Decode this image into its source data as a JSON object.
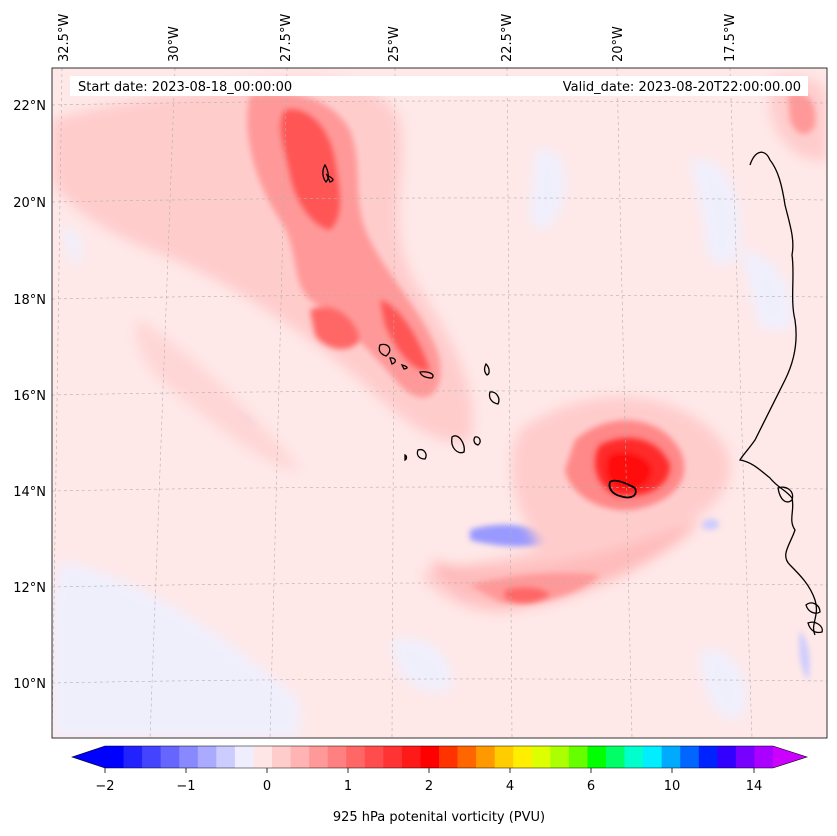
{
  "header": {
    "start_label": "Start date: 2023-08-18_00:00:00",
    "valid_label": "Valid_date: 2023-08-20T22:00:00.00"
  },
  "axes": {
    "lon_labels": [
      "32.5°W",
      "30°W",
      "27.5°W",
      "25°W",
      "22.5°W",
      "20°W",
      "17.5°W"
    ],
    "lat_labels": [
      "22°N",
      "20°N",
      "18°N",
      "16°N",
      "14°N",
      "12°N",
      "10°N"
    ]
  },
  "colorbar": {
    "label": "925 hPa potenital vorticity (PVU)",
    "tick_labels": [
      "−2",
      "−1",
      "0",
      "1",
      "2",
      "4",
      "6",
      "10",
      "14"
    ],
    "colors": [
      "#0000ff",
      "#2222ff",
      "#4444ff",
      "#6666ff",
      "#8888ff",
      "#aaaaff",
      "#ccccff",
      "#eeeeff",
      "#ffe6e6",
      "#ffcccc",
      "#ffb3b3",
      "#ff9999",
      "#ff8080",
      "#ff6666",
      "#ff4d4d",
      "#ff3333",
      "#ff1a1a",
      "#ff0000",
      "#ff3300",
      "#ff6600",
      "#ff9900",
      "#ffcc00",
      "#ffee00",
      "#ddff00",
      "#aaff00",
      "#66ff00",
      "#00ff00",
      "#00ff66",
      "#00ffcc",
      "#00eeff",
      "#00aaff",
      "#0066ff",
      "#0022ff",
      "#3300ff",
      "#7700ff",
      "#aa00ff"
    ],
    "under_color": "#0000ff",
    "over_color": "#cc00ff"
  },
  "colors": {
    "background_field": "#ffe8e8",
    "coast": "#000000",
    "grid": "#b0b0b0"
  }
}
